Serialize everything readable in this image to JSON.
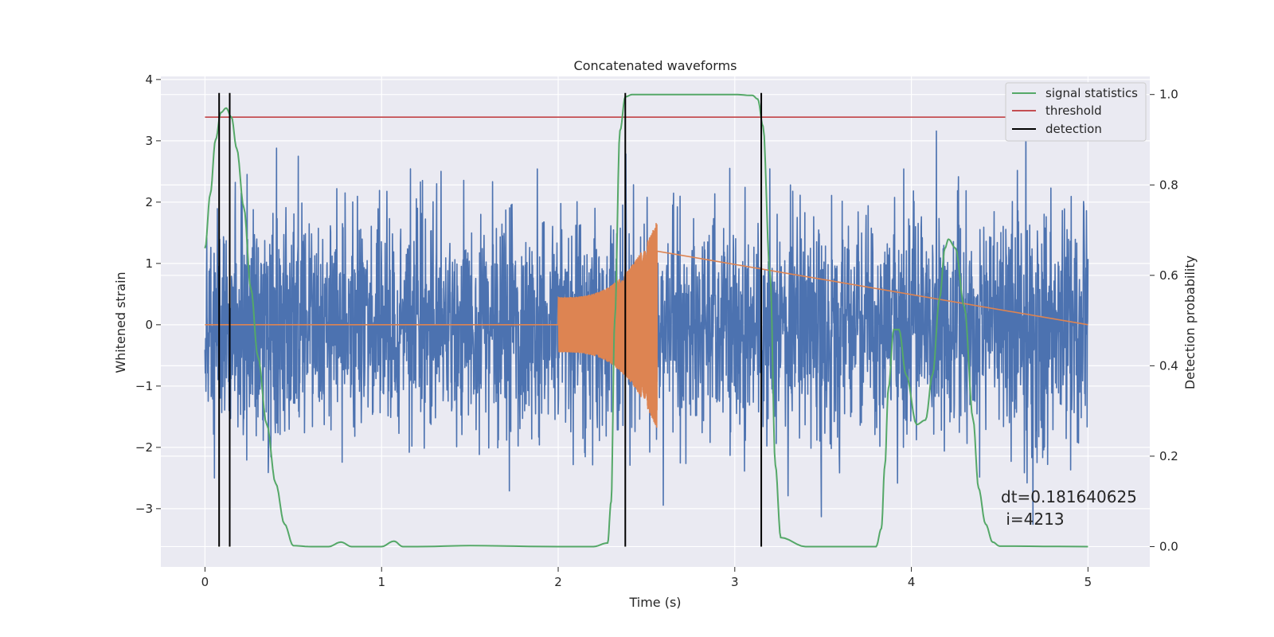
{
  "chart_data": {
    "type": "line",
    "title": "Concatenated waveforms",
    "xlabel": "Time (s)",
    "ylabel": "Whitened strain",
    "y2label": "Detection probability",
    "xlim": [
      -0.25,
      5.35
    ],
    "ylim": [
      -3.95,
      4.05
    ],
    "y2lim": [
      -0.045,
      1.04
    ],
    "x_ticks": [
      0,
      1,
      2,
      3,
      4,
      5
    ],
    "y_ticks": [
      -3,
      -2,
      -1,
      0,
      1,
      2,
      3,
      4
    ],
    "y2_ticks": [
      0.0,
      0.2,
      0.4,
      0.6,
      0.8,
      1.0
    ],
    "x_tick_labels": [
      "0",
      "1",
      "2",
      "3",
      "4",
      "5"
    ],
    "y_tick_labels": [
      "−3",
      "−2",
      "−1",
      "0",
      "1",
      "2",
      "3",
      "4"
    ],
    "y2_tick_labels": [
      "0.0",
      "0.2",
      "0.4",
      "0.6",
      "0.8",
      "1.0"
    ],
    "grid": true,
    "legend_position": "top-right",
    "colors": {
      "strain": "#4c72b0",
      "injection": "#dd8452",
      "signal_statistics": "#55a868",
      "threshold": "#c44e52",
      "detection": "#000000",
      "background": "#eaeaf2",
      "grid": "#ffffff"
    },
    "strain": {
      "t_start": 0.0,
      "t_end": 5.0,
      "std": 0.9,
      "min": -3.6,
      "max": 3.7
    },
    "injection": {
      "t_start": 2.0,
      "t_end": 2.56,
      "amp_start": 0.45,
      "amp_end": 1.7,
      "baseline": 0.0
    },
    "series": [
      {
        "name": "signal statistics",
        "axis": "right",
        "x": [
          0.0,
          0.03,
          0.06,
          0.09,
          0.12,
          0.15,
          0.18,
          0.22,
          0.26,
          0.3,
          0.35,
          0.4,
          0.45,
          0.5,
          0.6,
          0.7,
          0.77,
          0.83,
          0.9,
          1.0,
          1.07,
          1.12,
          1.2,
          1.5,
          2.0,
          2.2,
          2.28,
          2.3,
          2.32,
          2.35,
          2.38,
          2.42,
          2.5,
          3.0,
          3.1,
          3.13,
          3.16,
          3.2,
          3.23,
          3.26,
          3.4,
          3.8,
          3.83,
          3.85,
          3.87,
          3.9,
          3.93,
          3.97,
          4.03,
          4.08,
          4.12,
          4.16,
          4.19,
          4.21,
          4.25,
          4.3,
          4.35,
          4.38,
          4.42,
          4.46,
          4.5,
          5.0
        ],
        "y": [
          0.66,
          0.78,
          0.9,
          0.96,
          0.97,
          0.95,
          0.88,
          0.75,
          0.57,
          0.42,
          0.27,
          0.14,
          0.05,
          0.002,
          0.0,
          0.0,
          0.01,
          0.0,
          0.0,
          0.0,
          0.012,
          0.0,
          0.0,
          0.002,
          0.0,
          0.0,
          0.008,
          0.1,
          0.5,
          0.92,
          0.995,
          1.0,
          1.0,
          1.0,
          0.998,
          0.99,
          0.93,
          0.6,
          0.18,
          0.02,
          0.0,
          0.0,
          0.04,
          0.18,
          0.35,
          0.48,
          0.48,
          0.38,
          0.27,
          0.28,
          0.38,
          0.55,
          0.66,
          0.68,
          0.66,
          0.53,
          0.28,
          0.13,
          0.05,
          0.01,
          0.001,
          0.0
        ]
      },
      {
        "name": "threshold",
        "axis": "right",
        "x": [
          0.0,
          5.1
        ],
        "y": [
          0.95,
          0.95
        ]
      },
      {
        "name": "detection",
        "axis": "right",
        "x": [
          0.08,
          0.14,
          2.38,
          3.15
        ],
        "y_range": [
          0.0,
          1.0
        ]
      }
    ],
    "annotation": {
      "line1": "dt=0.181640625",
      "line2": " i=4213"
    }
  }
}
